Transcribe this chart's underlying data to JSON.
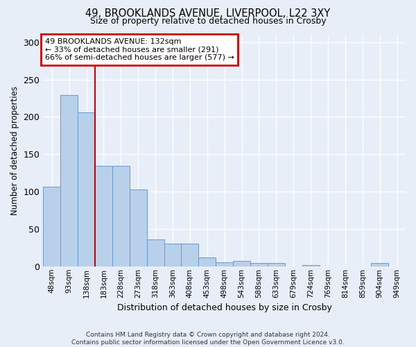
{
  "title_line1": "49, BROOKLANDS AVENUE, LIVERPOOL, L22 3XY",
  "title_line2": "Size of property relative to detached houses in Crosby",
  "xlabel": "Distribution of detached houses by size in Crosby",
  "ylabel": "Number of detached properties",
  "categories": [
    "48sqm",
    "93sqm",
    "138sqm",
    "183sqm",
    "228sqm",
    "273sqm",
    "318sqm",
    "363sqm",
    "408sqm",
    "453sqm",
    "498sqm",
    "543sqm",
    "588sqm",
    "633sqm",
    "679sqm",
    "724sqm",
    "769sqm",
    "814sqm",
    "859sqm",
    "904sqm",
    "949sqm"
  ],
  "values": [
    107,
    229,
    206,
    134,
    134,
    103,
    36,
    30,
    30,
    12,
    5,
    7,
    4,
    4,
    0,
    2,
    0,
    0,
    0,
    4,
    0
  ],
  "bar_color": "#b8d0ea",
  "bar_edge_color": "#6699cc",
  "vline_x_index": 2,
  "annotation_text_line1": "49 BROOKLANDS AVENUE: 132sqm",
  "annotation_text_line2": "← 33% of detached houses are smaller (291)",
  "annotation_text_line3": "66% of semi-detached houses are larger (577) →",
  "annotation_box_facecolor": "#ffffff",
  "annotation_box_edgecolor": "#cc0000",
  "vline_color": "#cc0000",
  "ylim": [
    0,
    310
  ],
  "yticks": [
    0,
    50,
    100,
    150,
    200,
    250,
    300
  ],
  "background_color": "#e8eef8",
  "grid_color": "#ffffff",
  "footer_line1": "Contains HM Land Registry data © Crown copyright and database right 2024.",
  "footer_line2": "Contains public sector information licensed under the Open Government Licence v3.0."
}
